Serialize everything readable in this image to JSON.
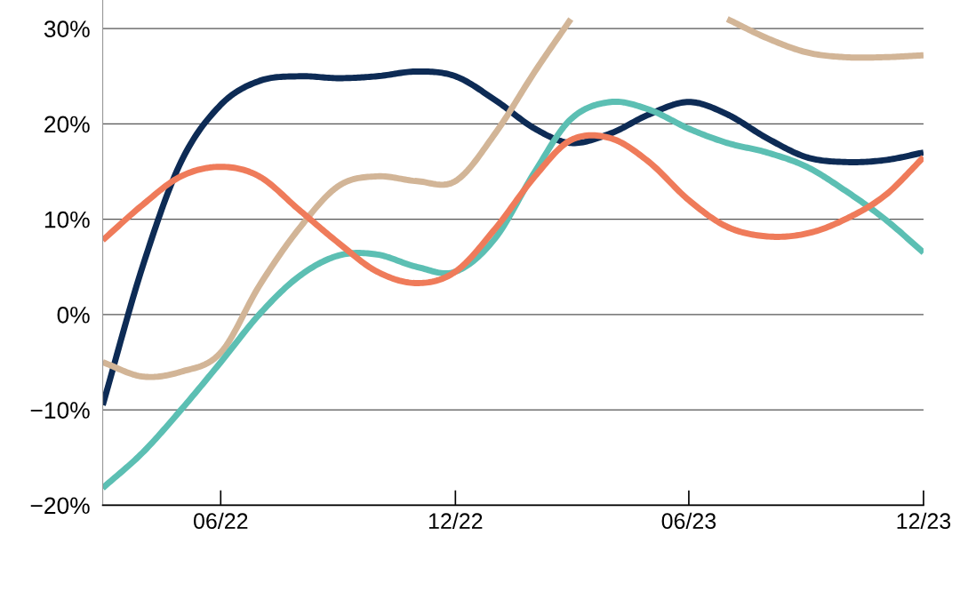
{
  "chart_data": {
    "type": "line",
    "x": [
      "2022-03",
      "2022-04",
      "2022-05",
      "2022-06",
      "2022-07",
      "2022-08",
      "2022-09",
      "2022-10",
      "2022-11",
      "2022-12",
      "2023-01",
      "2023-02",
      "2023-03",
      "2023-04",
      "2023-05",
      "2023-06",
      "2023-07",
      "2023-08",
      "2023-09",
      "2023-10",
      "2023-11",
      "2023-12"
    ],
    "series": [
      {
        "color": "#0d2b55",
        "values": [
          -9.5,
          5,
          16,
          22,
          24.5,
          25,
          24.8,
          25,
          25.5,
          25,
          22.5,
          19.5,
          18,
          19,
          21,
          22.3,
          21,
          18.5,
          16.5,
          16,
          16.2,
          17
        ]
      },
      {
        "color": "#d2b597",
        "values": [
          -5,
          -6.5,
          -6,
          -4,
          3,
          9,
          13.5,
          14.5,
          14,
          14,
          19,
          25.5,
          31,
          null,
          null,
          null,
          31,
          29,
          27.5,
          27,
          27,
          27.2
        ]
      },
      {
        "color": "#5cbfb3",
        "values": [
          -18.2,
          -14.5,
          -10,
          -5,
          0,
          4,
          6.2,
          6.3,
          5,
          4.5,
          8,
          15,
          20.5,
          22.3,
          21.5,
          19.5,
          18,
          17,
          15.5,
          13,
          10,
          6.5
        ]
      },
      {
        "color": "#ef7b5a",
        "values": [
          7.8,
          11.5,
          14.5,
          15.5,
          14.5,
          11,
          7.5,
          4.5,
          3.3,
          4.5,
          9,
          14.5,
          18.3,
          18.5,
          16,
          12,
          9.2,
          8.2,
          8.5,
          10,
          12.5,
          16.5
        ]
      }
    ],
    "xlim": [
      "2022-03",
      "2023-12"
    ],
    "xticks": [
      {
        "value": "2022-06",
        "label": "06/22"
      },
      {
        "value": "2022-12",
        "label": "12/22"
      },
      {
        "value": "2023-06",
        "label": "06/23"
      },
      {
        "value": "2023-12",
        "label": "12/23"
      }
    ],
    "ylim": [
      -20,
      33
    ],
    "yticks": [
      {
        "value": -20,
        "label": "−20%"
      },
      {
        "value": -10,
        "label": "−10%"
      },
      {
        "value": 0,
        "label": "0%"
      },
      {
        "value": 10,
        "label": "10%"
      },
      {
        "value": 20,
        "label": "20%"
      },
      {
        "value": 30,
        "label": "30%"
      }
    ],
    "grid": "y",
    "line_style": "solid",
    "marker": "none",
    "legend": false
  }
}
